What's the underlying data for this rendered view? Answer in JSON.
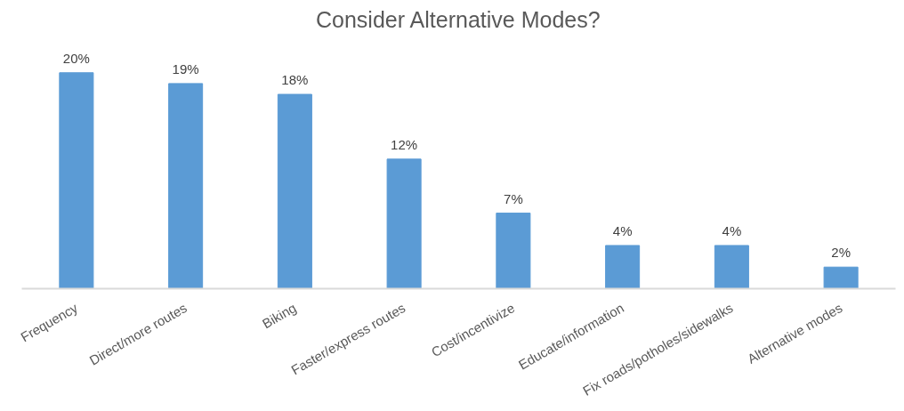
{
  "chart_data": {
    "type": "bar",
    "title": "Consider Alternative Modes?",
    "categories": [
      "Frequency",
      "Direct/more routes",
      "Biking",
      "Faster/express routes",
      "Cost/incentivize",
      "Educate/information",
      "Fix roads/potholes/sidewalks",
      "Alternative modes"
    ],
    "values": [
      20,
      19,
      18,
      12,
      7,
      4,
      4,
      2
    ],
    "color": "#5b9bd5",
    "value_labels": [
      "20%",
      "19%",
      "18%",
      "12%",
      "7%",
      "4%",
      "4%",
      "2%"
    ]
  }
}
